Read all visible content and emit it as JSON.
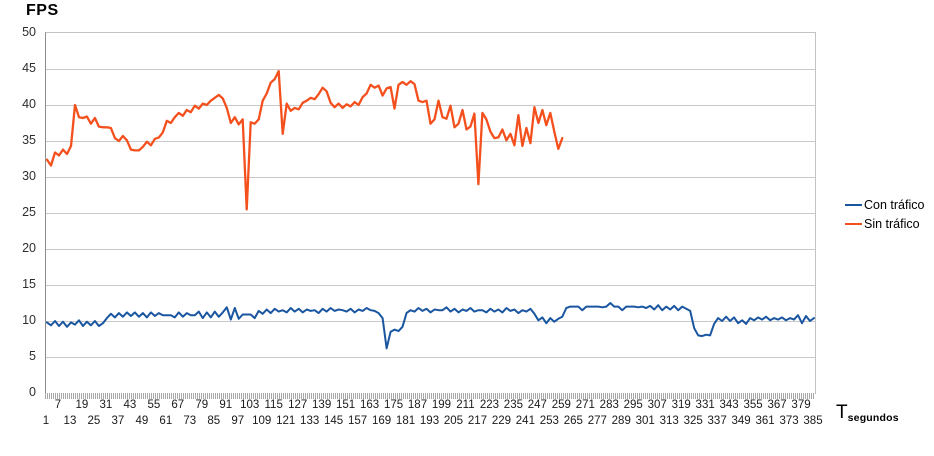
{
  "page": {
    "fps_label": "FPS"
  },
  "axis_titles": {
    "x_main": "T",
    "x_sub": "segundos"
  },
  "legend": {
    "position": "right",
    "items": [
      {
        "label": "Con tráfico",
        "color": "#1a56a0"
      },
      {
        "label": "Sin tráfico",
        "color": "#f4501e"
      }
    ]
  },
  "chart_data": {
    "type": "line",
    "title": "",
    "ylabel": "FPS",
    "xlabel": "T segundos",
    "ylim": [
      0,
      50
    ],
    "xlim": [
      1,
      385
    ],
    "grid": true,
    "legend_position": "right",
    "yticks": [
      0,
      5,
      10,
      15,
      20,
      25,
      30,
      35,
      40,
      45,
      50
    ],
    "xticks_upper": [
      7,
      19,
      31,
      43,
      55,
      67,
      79,
      91,
      103,
      115,
      127,
      139,
      151,
      163,
      175,
      187,
      199,
      211,
      223,
      235,
      247,
      259,
      271,
      283,
      295,
      307,
      319,
      331,
      343,
      355,
      367,
      379
    ],
    "xticks_lower": [
      1,
      13,
      25,
      37,
      49,
      61,
      73,
      85,
      97,
      109,
      121,
      133,
      145,
      157,
      169,
      181,
      193,
      205,
      217,
      229,
      241,
      253,
      265,
      277,
      289,
      301,
      313,
      325,
      337,
      349,
      361,
      373,
      385
    ],
    "series": [
      {
        "name": "Con tráfico",
        "color": "#1a56a0",
        "stroke_width": 2,
        "x_start": 1,
        "x_step": 2,
        "values": [
          9.8,
          9.4,
          10.0,
          9.3,
          9.9,
          9.2,
          9.8,
          9.5,
          10.1,
          9.3,
          9.9,
          9.4,
          10.0,
          9.3,
          9.7,
          10.4,
          11.0,
          10.5,
          11.1,
          10.6,
          11.2,
          10.7,
          11.2,
          10.6,
          11.1,
          10.5,
          11.2,
          10.7,
          11.1,
          10.8,
          10.8,
          10.8,
          10.5,
          11.2,
          10.6,
          11.1,
          10.8,
          10.8,
          11.3,
          10.4,
          11.2,
          10.5,
          11.3,
          10.6,
          11.2,
          11.9,
          10.2,
          11.8,
          10.3,
          10.9,
          10.9,
          10.9,
          10.4,
          11.4,
          11.0,
          11.6,
          11.1,
          11.7,
          11.3,
          11.5,
          11.2,
          11.8,
          11.3,
          11.7,
          11.2,
          11.6,
          11.4,
          11.5,
          11.1,
          11.7,
          11.3,
          11.8,
          11.4,
          11.6,
          11.5,
          11.3,
          11.7,
          11.2,
          11.6,
          11.4,
          11.8,
          11.5,
          11.4,
          11.1,
          10.4,
          6.2,
          8.5,
          8.8,
          8.6,
          9.2,
          11.1,
          11.5,
          11.3,
          11.8,
          11.4,
          11.7,
          11.2,
          11.6,
          11.5,
          11.5,
          11.9,
          11.3,
          11.7,
          11.2,
          11.6,
          11.4,
          11.8,
          11.3,
          11.5,
          11.5,
          11.2,
          11.7,
          11.3,
          11.6,
          11.2,
          11.8,
          11.4,
          11.6,
          11.1,
          11.5,
          11.3,
          11.7,
          11.0,
          10.1,
          10.5,
          9.7,
          10.4,
          9.9,
          10.3,
          10.6,
          11.8,
          12.0,
          12.0,
          12.0,
          11.5,
          12.0,
          12.0,
          12.0,
          12.0,
          11.9,
          12.0,
          12.5,
          12.0,
          12.0,
          11.5,
          12.0,
          12.0,
          12.0,
          11.9,
          12.0,
          11.8,
          12.1,
          11.6,
          12.2,
          11.5,
          12.0,
          11.6,
          12.1,
          11.5,
          12.0,
          11.7,
          11.4,
          9.0,
          8.0,
          7.9,
          8.1,
          8.0,
          9.6,
          10.4,
          10.0,
          10.6,
          10.0,
          10.5,
          9.7,
          10.1,
          9.6,
          10.4,
          10.1,
          10.5,
          10.2,
          10.6,
          10.1,
          10.4,
          10.2,
          10.5,
          10.1,
          10.4,
          10.2,
          10.8,
          9.7,
          10.7,
          10.0,
          10.4
        ]
      },
      {
        "name": "Sin tráfico",
        "color": "#f4501e",
        "stroke_width": 2.3,
        "x_start": 1,
        "x_step": 2,
        "values": [
          32.4,
          31.6,
          33.4,
          33.0,
          33.8,
          33.2,
          34.3,
          40.0,
          38.3,
          38.2,
          38.4,
          37.4,
          38.2,
          37.0,
          36.9,
          36.9,
          36.8,
          35.4,
          35.0,
          35.7,
          35.1,
          33.8,
          33.7,
          33.7,
          34.2,
          34.9,
          34.4,
          35.3,
          35.5,
          36.2,
          37.8,
          37.5,
          38.3,
          38.9,
          38.5,
          39.3,
          39.0,
          39.9,
          39.5,
          40.2,
          40.0,
          40.6,
          41.0,
          41.4,
          40.9,
          39.6,
          37.5,
          38.3,
          37.3,
          38.0,
          25.5,
          37.6,
          37.4,
          38.0,
          40.6,
          41.6,
          43.1,
          43.6,
          44.7,
          36.0,
          40.2,
          39.2,
          39.6,
          39.4,
          40.3,
          40.6,
          41.0,
          40.8,
          41.5,
          42.4,
          41.9,
          40.3,
          39.7,
          40.2,
          39.6,
          40.1,
          39.8,
          40.4,
          40.0,
          41.1,
          41.6,
          42.8,
          42.4,
          42.7,
          41.3,
          42.3,
          42.5,
          39.5,
          42.8,
          43.2,
          42.8,
          43.3,
          42.9,
          40.6,
          40.4,
          40.6,
          37.4,
          38.0,
          40.6,
          38.3,
          38.1,
          39.9,
          36.9,
          37.4,
          39.3,
          36.6,
          37.0,
          38.8,
          29.0,
          38.9,
          38.0,
          36.3,
          35.4,
          35.5,
          36.6,
          35.1,
          36.0,
          34.4,
          38.6,
          34.3,
          36.8,
          34.7,
          39.7,
          37.5,
          39.3,
          37.2,
          38.9,
          36.3,
          33.9,
          35.4
        ]
      }
    ]
  }
}
